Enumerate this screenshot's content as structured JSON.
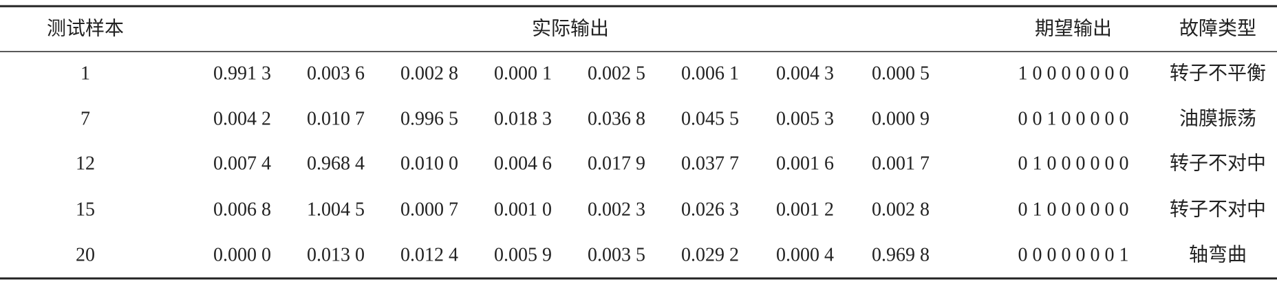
{
  "table": {
    "header": [
      "测试样本",
      "实际输出",
      "期望输出",
      "故障类型"
    ],
    "rows": [
      {
        "sample": "1",
        "outputs": [
          "0.991 3",
          "0.003 6",
          "0.002 8",
          "0.000 1",
          "0.002 5",
          "0.006 1",
          "0.004 3",
          "0.000 5"
        ],
        "expected": "1 0 0 0 0 0 0 0",
        "fault": "转子不平衡"
      },
      {
        "sample": "7",
        "outputs": [
          "0.004 2",
          "0.010 7",
          "0.996 5",
          "0.018 3",
          "0.036 8",
          "0.045 5",
          "0.005 3",
          "0.000 9"
        ],
        "expected": "0 0 1 0 0 0 0 0",
        "fault": "油膜振荡"
      },
      {
        "sample": "12",
        "outputs": [
          "0.007 4",
          "0.968 4",
          "0.010 0",
          "0.004 6",
          "0.017 9",
          "0.037 7",
          "0.001 6",
          "0.001 7"
        ],
        "expected": "0 1 0 0 0 0 0 0",
        "fault": "转子不对中"
      },
      {
        "sample": "15",
        "outputs": [
          "0.006 8",
          "1.004 5",
          "0.000 7",
          "0.001 0",
          "0.002 3",
          "0.026 3",
          "0.001 2",
          "0.002 8"
        ],
        "expected": "0 1 0 0 0 0 0 0",
        "fault": "转子不对中"
      },
      {
        "sample": "20",
        "outputs": [
          "0.000 0",
          "0.013 0",
          "0.012 4",
          "0.005 9",
          "0.003 5",
          "0.029 2",
          "0.000 4",
          "0.969 8"
        ],
        "expected": "0 0 0 0 0 0 0 1",
        "fault": "轴弯曲"
      }
    ]
  }
}
